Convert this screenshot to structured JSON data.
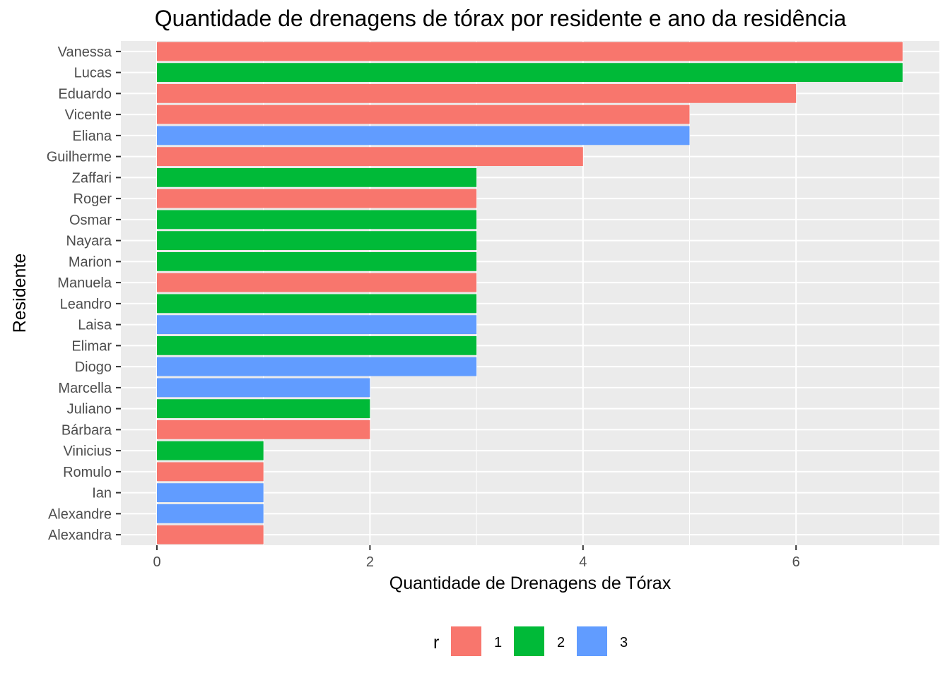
{
  "chart_data": {
    "type": "bar",
    "orientation": "horizontal",
    "title": "Quantidade de drenagens de tórax por residente e ano da residência",
    "xlabel": "Quantidade de Drenagens de Tórax",
    "ylabel": "Residente",
    "xlim": [
      0,
      7
    ],
    "x_ticks": [
      "0",
      "2",
      "4",
      "6"
    ],
    "grid": true,
    "legend": {
      "title": "r",
      "position": "bottom",
      "entries": [
        {
          "label": "1",
          "color": "#F8766D"
        },
        {
          "label": "2",
          "color": "#00BA38"
        },
        {
          "label": "3",
          "color": "#619CFF"
        }
      ]
    },
    "categories": [
      "Vanessa",
      "Lucas",
      "Eduardo",
      "Vicente",
      "Eliana",
      "Guilherme",
      "Zaffari",
      "Roger",
      "Osmar",
      "Nayara",
      "Marion",
      "Manuela",
      "Leandro",
      "Laisa",
      "Elimar",
      "Diogo",
      "Marcella",
      "Juliano",
      "Bárbara",
      "Vinicius",
      "Romulo",
      "Ian",
      "Alexandre",
      "Alexandra"
    ],
    "values": [
      7,
      7,
      6,
      5,
      5,
      4,
      3,
      3,
      3,
      3,
      3,
      3,
      3,
      3,
      3,
      3,
      2,
      2,
      2,
      1,
      1,
      1,
      1,
      1
    ],
    "group": [
      "1",
      "2",
      "1",
      "1",
      "3",
      "1",
      "2",
      "1",
      "2",
      "2",
      "2",
      "1",
      "2",
      "3",
      "2",
      "3",
      "3",
      "2",
      "1",
      "2",
      "1",
      "3",
      "3",
      "1"
    ]
  }
}
